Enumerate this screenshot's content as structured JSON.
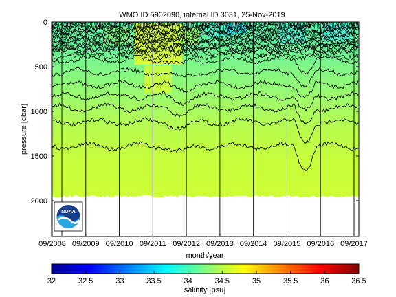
{
  "chart_data": {
    "type": "heatmap",
    "title": "WMO ID 5902090, internal ID 3031, 25-Nov-2019",
    "xlabel": "month/year",
    "ylabel": "pressure [dbar]",
    "x_ticks": [
      "09/2008",
      "09/2009",
      "09/2010",
      "09/2011",
      "09/2012",
      "09/2013",
      "09/2014",
      "09/2015",
      "09/2016",
      "09/2017"
    ],
    "y_ticks": [
      0,
      500,
      1000,
      1500,
      2000
    ],
    "ylim": [
      0,
      2400
    ],
    "y_reversed": true,
    "max_profile_pressure": 1950,
    "colorbar": {
      "label": "salinity [psu]",
      "range": [
        32,
        36.5
      ],
      "ticks": [
        "32",
        "32.5",
        "33",
        "33.5",
        "34",
        "34.5",
        "35",
        "35.5",
        "36",
        "36.5"
      ]
    },
    "salinity_profile_typical": [
      {
        "pressure": 0,
        "salinity": 34.1
      },
      {
        "pressure": 300,
        "salinity": 34.3
      },
      {
        "pressure": 600,
        "salinity": 34.2
      },
      {
        "pressure": 1000,
        "salinity": 34.4
      },
      {
        "pressure": 1500,
        "salinity": 34.6
      },
      {
        "pressure": 1950,
        "salinity": 34.7
      }
    ],
    "contour_levels_dbar_approx": [
      420,
      560,
      700,
      830,
      960,
      1120,
      1390
    ]
  },
  "logo": {
    "text": "NOAA"
  },
  "colors": {
    "colormap": [
      "#00008f",
      "#0000ff",
      "#0080ff",
      "#00ffff",
      "#80ff80",
      "#ffff00",
      "#ff8000",
      "#ff0000",
      "#800000"
    ]
  }
}
